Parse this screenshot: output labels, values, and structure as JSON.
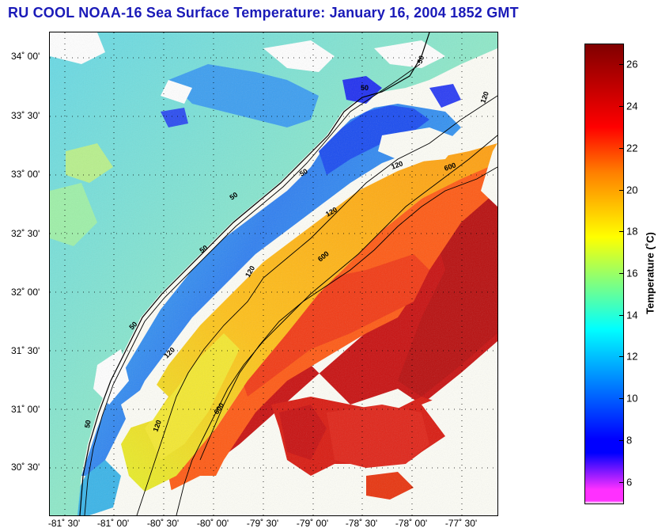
{
  "title": "RU COOL  NOAA-16  Sea Surface Temperature:  January 16, 2004 1852 GMT",
  "lat_labels": [
    "34˚ 00'",
    "33˚ 30'",
    "33˚ 00'",
    "32˚ 30'",
    "32˚ 00'",
    "31˚ 30'",
    "31˚ 00'",
    "30˚ 30'"
  ],
  "lon_labels": [
    "-81˚ 30'",
    "-81˚ 00'",
    "-80˚ 30'",
    "-80˚ 00'",
    "-79˚ 30'",
    "-79˚ 00'",
    "-78˚ 30'",
    "-78˚ 00'",
    "-77˚ 30'"
  ],
  "isobath_labels": [
    "50",
    "50",
    "50",
    "50",
    "50",
    "50",
    "50",
    "120",
    "120",
    "120",
    "120",
    "120",
    "120",
    "600",
    "600",
    "600"
  ],
  "colorbar": {
    "label": "Temperature (˚C)",
    "min": 5,
    "max": 27,
    "ticks": [
      "6",
      "8",
      "10",
      "12",
      "14",
      "16",
      "18",
      "20",
      "22",
      "24",
      "26"
    ],
    "colors": {
      "cold": "#ff30ff",
      "blue": "#0000ff",
      "cyan": "#00ffff",
      "yellow": "#ffff00",
      "orange": "#ff8000",
      "red": "#ff0000",
      "darkred": "#800000",
      "land": "#ffffff",
      "clouds": "#fdfdf6"
    }
  }
}
